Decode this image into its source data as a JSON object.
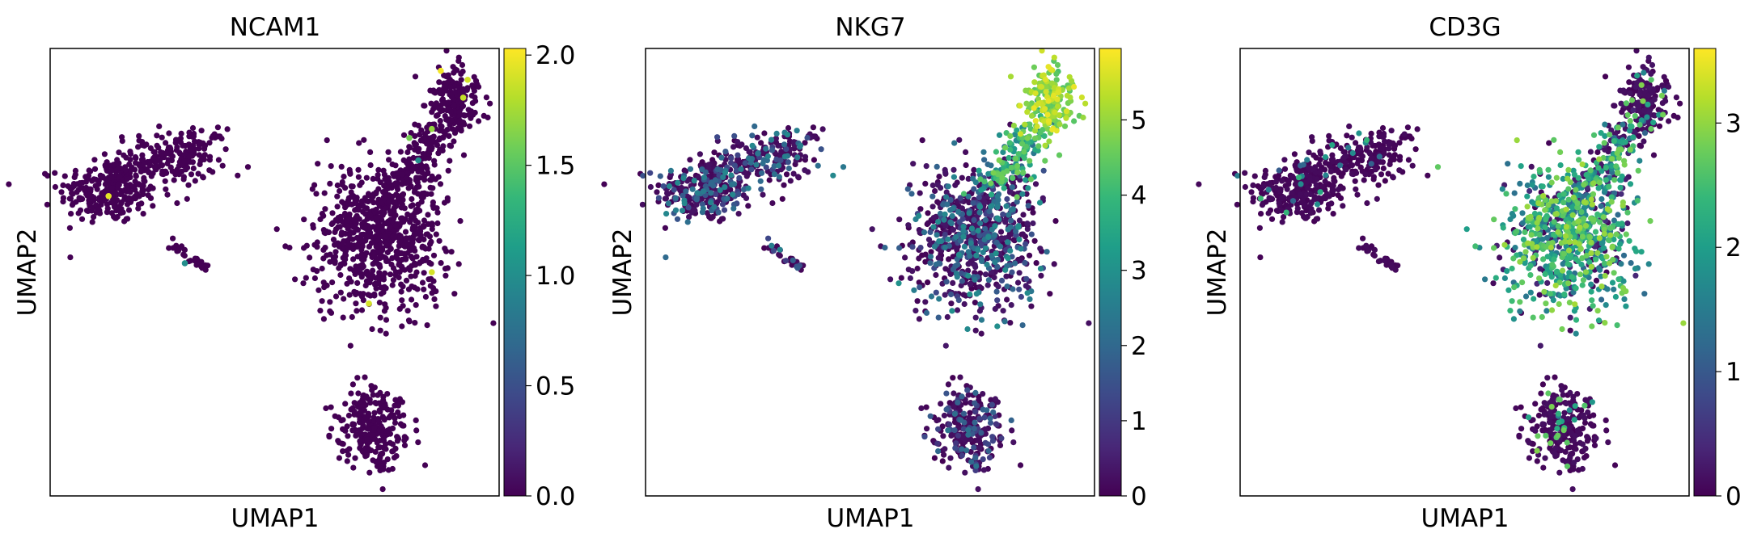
{
  "colormap": [
    "#440154",
    "#482878",
    "#3e4989",
    "#31688e",
    "#26828e",
    "#1f9e89",
    "#35b779",
    "#6ece58",
    "#b5de2b",
    "#fde725"
  ],
  "chart_data": [
    {
      "type": "scatter",
      "title": "NCAM1",
      "xlabel": "UMAP1",
      "ylabel": "UMAP2",
      "color_range": [
        0.0,
        2.03
      ],
      "colorbar_ticks": [
        "0.0",
        "0.5",
        "1.0",
        "1.5",
        "2.0"
      ],
      "colorbar_tick_values": [
        0.0,
        0.5,
        1.0,
        1.5,
        2.0
      ],
      "highlight_points": [
        {
          "x": 0.13,
          "y": 0.67,
          "value": 1.95
        },
        {
          "x": 0.87,
          "y": 0.95,
          "value": 2.0
        },
        {
          "x": 0.93,
          "y": 0.93,
          "value": 1.9
        },
        {
          "x": 0.92,
          "y": 0.89,
          "value": 1.85
        },
        {
          "x": 0.85,
          "y": 0.82,
          "value": 1.7
        },
        {
          "x": 0.8,
          "y": 0.8,
          "value": 1.6
        },
        {
          "x": 0.82,
          "y": 0.75,
          "value": 1.0
        },
        {
          "x": 0.85,
          "y": 0.5,
          "value": 1.9
        },
        {
          "x": 0.71,
          "y": 0.43,
          "value": 1.9
        },
        {
          "x": 0.3,
          "y": 0.52,
          "value": 1.0
        }
      ]
    },
    {
      "type": "scatter",
      "title": "NKG7",
      "xlabel": "UMAP1",
      "ylabel": "UMAP2",
      "color_range": [
        0,
        5.95
      ],
      "colorbar_ticks": [
        "0",
        "1",
        "2",
        "3",
        "4",
        "5"
      ],
      "colorbar_tick_values": [
        0,
        1,
        2,
        3,
        4,
        5
      ]
    },
    {
      "type": "scatter",
      "title": "CD3G",
      "xlabel": "UMAP1",
      "ylabel": "UMAP2",
      "color_range": [
        0,
        3.6
      ],
      "colorbar_ticks": [
        "0",
        "1",
        "2",
        "3"
      ],
      "colorbar_tick_values": [
        0,
        1,
        2,
        3
      ]
    }
  ]
}
